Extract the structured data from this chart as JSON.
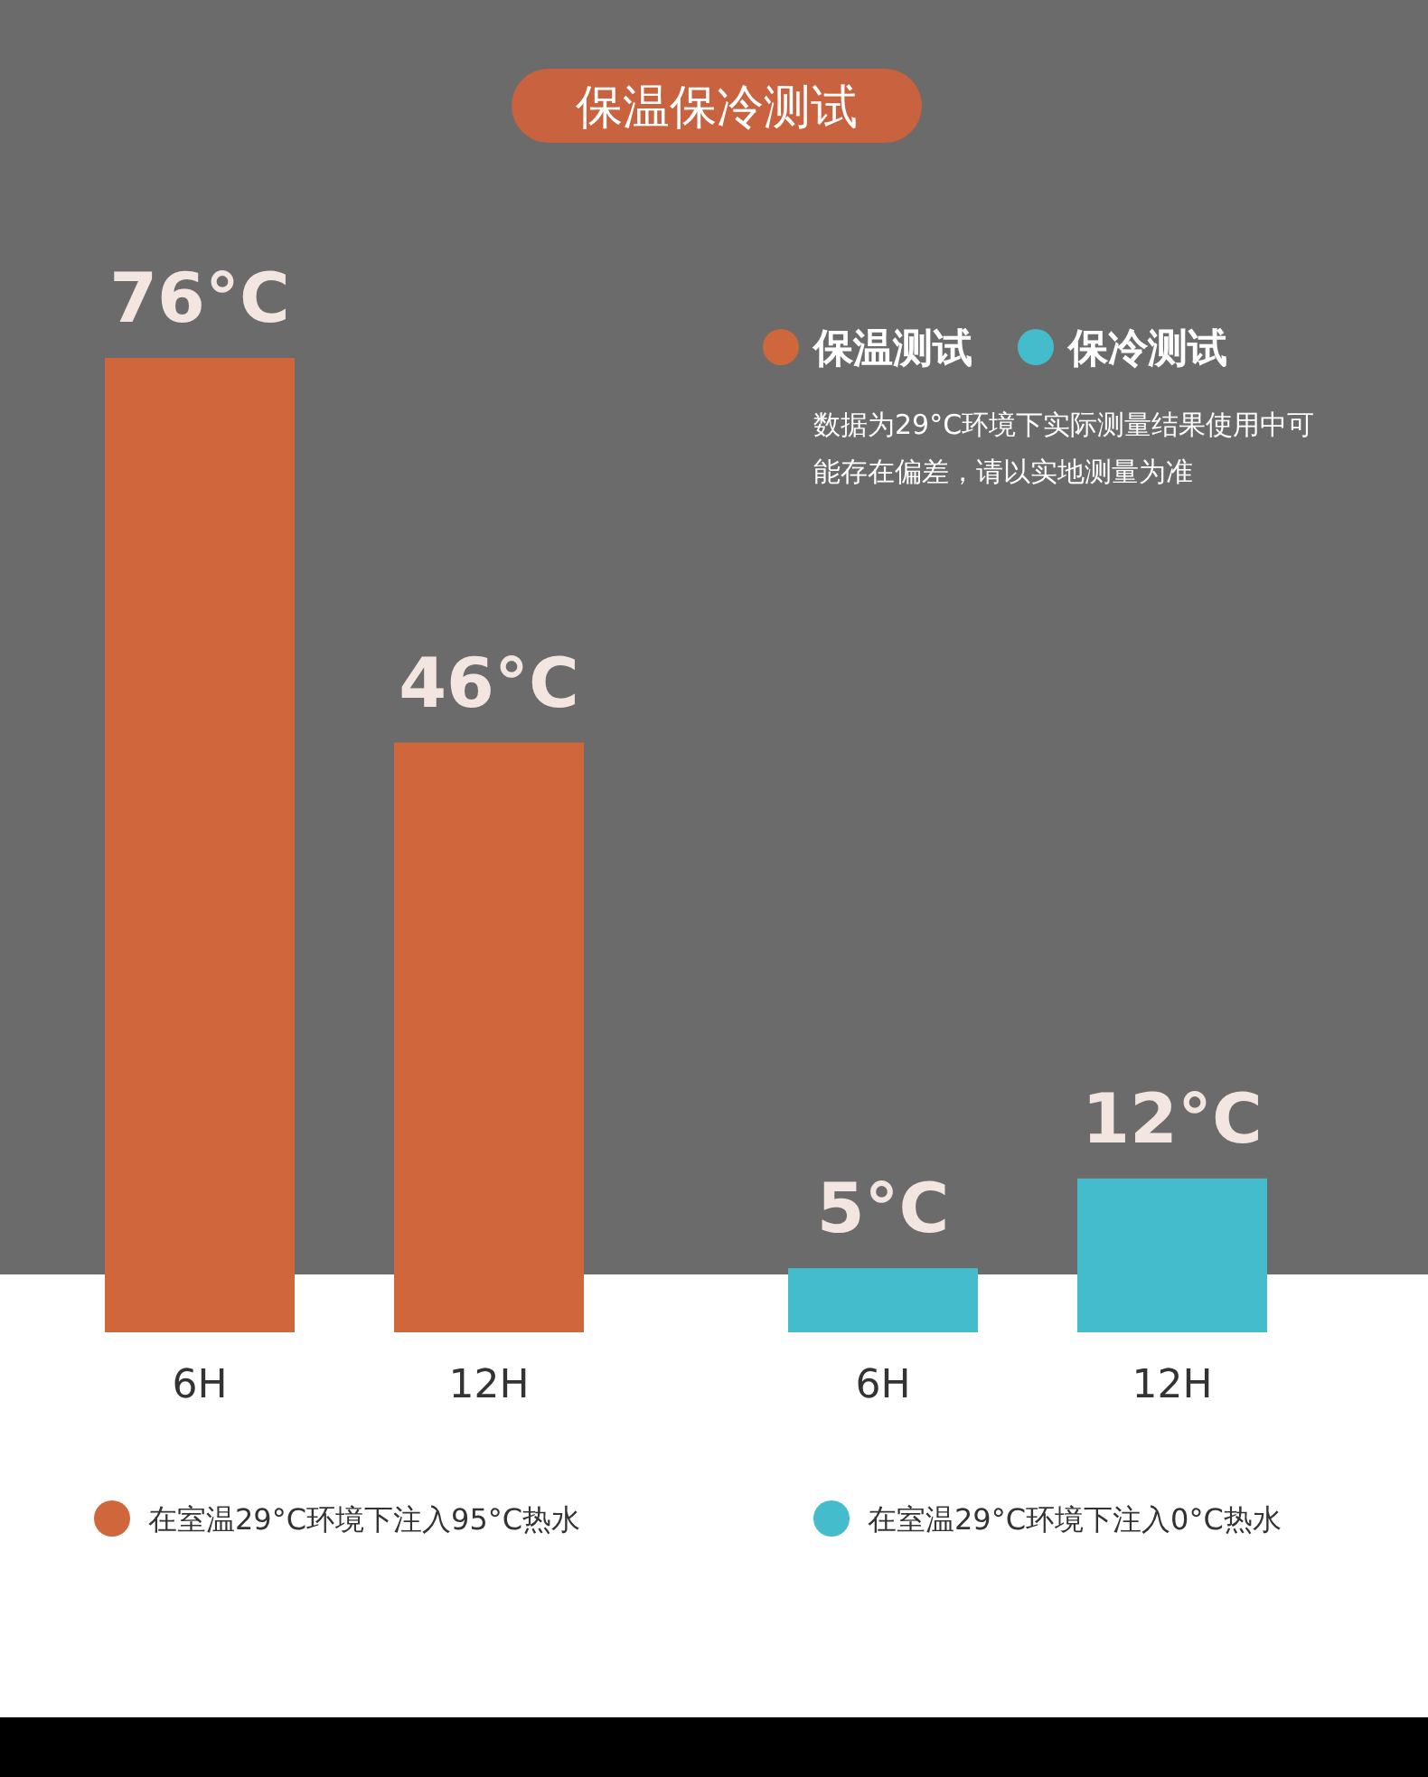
{
  "chart_data": {
    "type": "bar",
    "title": "保温保冷测试",
    "categories": [
      "6H",
      "12H",
      "6H",
      "12H"
    ],
    "series": [
      {
        "name": "保温测试",
        "color": "#d0663c",
        "values": [
          76,
          46,
          null,
          null
        ],
        "value_labels": [
          "76°C",
          "46°C",
          null,
          null
        ]
      },
      {
        "name": "保冷测试",
        "color": "#45bccb",
        "values": [
          null,
          null,
          5,
          12
        ],
        "value_labels": [
          null,
          null,
          "5°C",
          "12°C"
        ]
      }
    ],
    "legend": "top right",
    "annotations": [
      "数据为29°C环境下实际测量结果使用中可能存在偏差，请以实地测量为准",
      "在室温29°C环境下注入95°C热水",
      "在室温29°C环境下注入0°C热水"
    ]
  }
}
